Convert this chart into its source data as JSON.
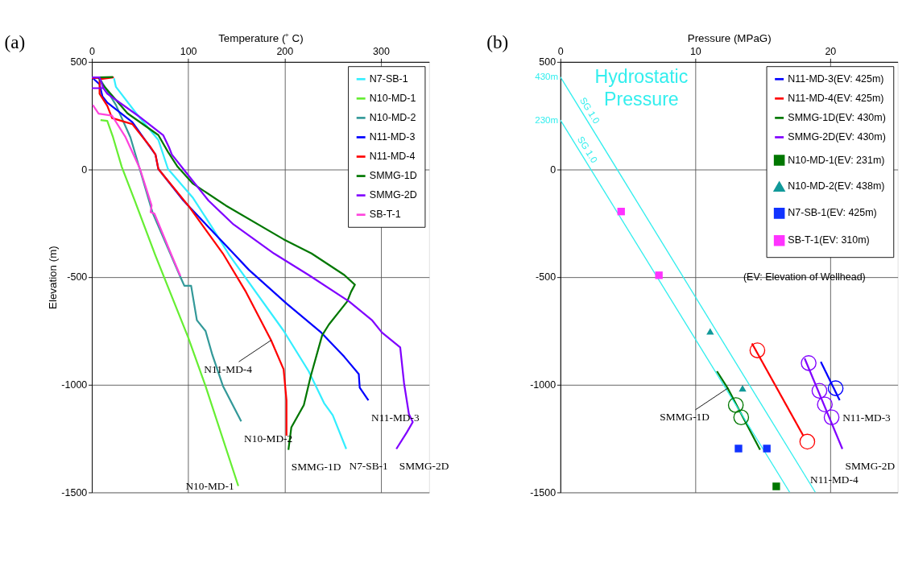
{
  "chart_data": [
    {
      "type": "line",
      "title": "(a)",
      "xlabel": "Temperature (˚ C)",
      "ylabel": "Elevation (m)",
      "xlim": [
        0,
        350
      ],
      "xticks": [
        0,
        100,
        200,
        300
      ],
      "ylim": [
        -1500,
        500
      ],
      "yticks": [
        -1500,
        -1000,
        -500,
        0,
        500
      ],
      "grid": true,
      "legend": "top right",
      "series": [
        {
          "name": "N7-SB-1",
          "color": "#33eeff",
          "x": [
            23,
            25,
            48,
            69,
            79,
            105,
            126,
            143,
            199,
            225,
            241,
            250,
            264
          ],
          "values": [
            424,
            384,
            250,
            138,
            3,
            -132,
            -277,
            -400,
            -749,
            -937,
            -1085,
            -1141,
            -1298
          ]
        },
        {
          "name": "N10-MD-1",
          "color": "#66ee33",
          "x": [
            9,
            16,
            22,
            31,
            45,
            66,
            100,
            118,
            152
          ],
          "values": [
            230,
            226,
            150,
            13,
            -150,
            -400,
            -780,
            -1006,
            -1470
          ]
        },
        {
          "name": "N10-MD-2",
          "color": "#339999",
          "x": [
            8,
            14,
            25,
            40,
            63,
            92,
            96,
            103,
            109,
            118,
            125,
            136,
            155
          ],
          "values": [
            425,
            380,
            300,
            150,
            -200,
            -500,
            -540,
            -540,
            -700,
            -750,
            -860,
            -1005,
            -1170
          ]
        },
        {
          "name": "N11-MD-3",
          "color": "#0000ff",
          "x": [
            1,
            8,
            11,
            16,
            42,
            66,
            69,
            95,
            147,
            163,
            202,
            238,
            262,
            277,
            278,
            287
          ],
          "values": [
            425,
            396,
            340,
            311,
            220,
            70,
            3,
            -144,
            -390,
            -466,
            -622,
            -757,
            -870,
            -950,
            -1013,
            -1072
          ]
        },
        {
          "name": "N11-MD-4",
          "color": "#ff0000",
          "x": [
            0,
            22,
            8,
            8,
            16,
            21,
            42,
            61,
            66,
            69,
            100,
            136,
            160,
            186,
            199,
            202,
            202
          ],
          "values": [
            425,
            428,
            420,
            352,
            296,
            239,
            211,
            104,
            70,
            3,
            -167,
            -390,
            -569,
            -793,
            -928,
            -1072,
            -1236
          ]
        },
        {
          "name": "SMMG-1D",
          "color": "#007700",
          "x": [
            22,
            7,
            11,
            37,
            69,
            79,
            89,
            105,
            139,
            199,
            228,
            262,
            273,
            269,
            265,
            246,
            239,
            227,
            220,
            207,
            204
          ],
          "values": [
            430,
            428,
            396,
            261,
            160,
            82,
            13,
            -66,
            -167,
            -324,
            -390,
            -490,
            -535,
            -568,
            -613,
            -720,
            -770,
            -962,
            -1094,
            -1198,
            -1302
          ]
        },
        {
          "name": "SMMG-2D",
          "color": "#8000ff",
          "x": [
            0,
            12,
            8,
            0,
            8,
            12,
            16,
            48,
            74,
            80,
            83,
            97,
            121,
            147,
            189,
            225,
            267,
            291,
            301,
            320,
            324,
            329,
            333,
            327,
            316
          ],
          "values": [
            378,
            378,
            428,
            428,
            428,
            378,
            352,
            250,
            160,
            104,
            70,
            -9,
            -144,
            -255,
            -390,
            -490,
            -613,
            -701,
            -757,
            -826,
            -993,
            -1135,
            -1173,
            -1220,
            -1298
          ]
        },
        {
          "name": "SB-T-1",
          "color": "#ff44dd",
          "x": [
            1,
            7,
            21,
            35,
            50,
            62,
            61,
            65,
            82,
            92
          ],
          "values": [
            300,
            260,
            250,
            150,
            3,
            -167,
            -198,
            -205,
            -390,
            -495
          ]
        }
      ],
      "annotations": [
        {
          "text": "N11-MD-4",
          "x": 186,
          "y": -793
        },
        {
          "text": "N10-MD-2",
          "x": 155,
          "y": -1170
        },
        {
          "text": "N11-MD-3",
          "x": 287,
          "y": -1072
        },
        {
          "text": "N7-SB-1",
          "x": 264,
          "y": -1298
        },
        {
          "text": "SMMG-2D",
          "x": 316,
          "y": -1298
        },
        {
          "text": "SMMG-1D",
          "x": 204,
          "y": -1302
        },
        {
          "text": "N10-MD-1",
          "x": 152,
          "y": -1470
        }
      ]
    },
    {
      "type": "line",
      "title": "(b)",
      "xlabel": "Pressure (MPaG)",
      "xlim": [
        0,
        25
      ],
      "xticks": [
        0,
        10,
        20
      ],
      "ylim": [
        -1500,
        500
      ],
      "yticks": [
        -1500,
        -1000,
        -500,
        0,
        500
      ],
      "grid": true,
      "legend": "top right",
      "series": [
        {
          "name": "N11-MD-3(EV: 425m)",
          "color": "#0000ff",
          "x": [
            19.3,
            20.7
          ],
          "values": [
            -893,
            -1072
          ]
        },
        {
          "name": "N11-MD-4(EV: 425m)",
          "color": "#ff0000",
          "x": [
            14.2,
            18.0
          ],
          "values": [
            -808,
            -1236
          ]
        },
        {
          "name": "SMMG-1D(EV: 430m)",
          "color": "#007700",
          "x": [
            11.6,
            12.4,
            14.8
          ],
          "values": [
            -937,
            -1016,
            -1302
          ]
        },
        {
          "name": "SMMG-2D(EV: 430m)",
          "color": "#8000ff",
          "x": [
            18.1,
            20.9
          ],
          "values": [
            -877,
            -1298
          ]
        },
        {
          "name": "N10-MD-1(EV: 231m)",
          "type": "scatter",
          "marker": "square",
          "color": "#007700",
          "x": [
            16.0
          ],
          "values": [
            -1472
          ]
        },
        {
          "name": "N10-MD-2(EV: 438m)",
          "type": "scatter",
          "marker": "triangle",
          "color": "#119999",
          "x": [
            11.1,
            13.5
          ],
          "values": [
            -752,
            -1016
          ]
        },
        {
          "name": "N7-SB-1(EV: 425m)",
          "type": "scatter",
          "marker": "square",
          "color": "#1133ff",
          "x": [
            13.2,
            15.3
          ],
          "values": [
            -1296,
            -1296
          ]
        },
        {
          "name": "SB-T-1(EV: 310m)",
          "type": "scatter",
          "marker": "square",
          "color": "#ff33ff",
          "x": [
            4.5,
            7.3
          ],
          "values": [
            -195,
            -491
          ]
        },
        {
          "type": "scatter",
          "marker": "circle",
          "color": "#0000ff",
          "x": [
            20.4
          ],
          "values": [
            -1016
          ]
        },
        {
          "type": "scatter",
          "marker": "circle",
          "color": "#ff0000",
          "x": [
            14.6,
            18.3
          ],
          "values": [
            -840,
            -1264
          ]
        },
        {
          "type": "scatter",
          "marker": "circle",
          "color": "#007700",
          "x": [
            13.0,
            13.4
          ],
          "values": [
            -1094,
            -1151
          ]
        },
        {
          "type": "scatter",
          "marker": "circle",
          "color": "#8000ff",
          "x": [
            18.4,
            19.2,
            19.6,
            20.1
          ],
          "values": [
            -899,
            -1028,
            -1091,
            -1151
          ]
        },
        {
          "name": "430m",
          "color": "#33eeee",
          "x": [
            0,
            18.9
          ],
          "values": [
            430,
            -1500
          ]
        },
        {
          "name": "230m",
          "color": "#33eeee",
          "x": [
            0,
            17.0
          ],
          "values": [
            230,
            -1500
          ]
        }
      ],
      "annotations": [
        "Hydrostatic\nPressure",
        "SG 1.0",
        "SG 1.0",
        {
          "text": "SMMG-1D",
          "x": 12.4,
          "y": -1016
        },
        {
          "text": "N11-MD-3",
          "x": 20.7,
          "y": -1072
        },
        {
          "text": "SMMG-2D",
          "x": 20.9,
          "y": -1298
        },
        {
          "text": "N11-MD-4",
          "x": 18.3,
          "y": -1264
        },
        "(EV:   Elevation of Wellhead)"
      ]
    }
  ]
}
